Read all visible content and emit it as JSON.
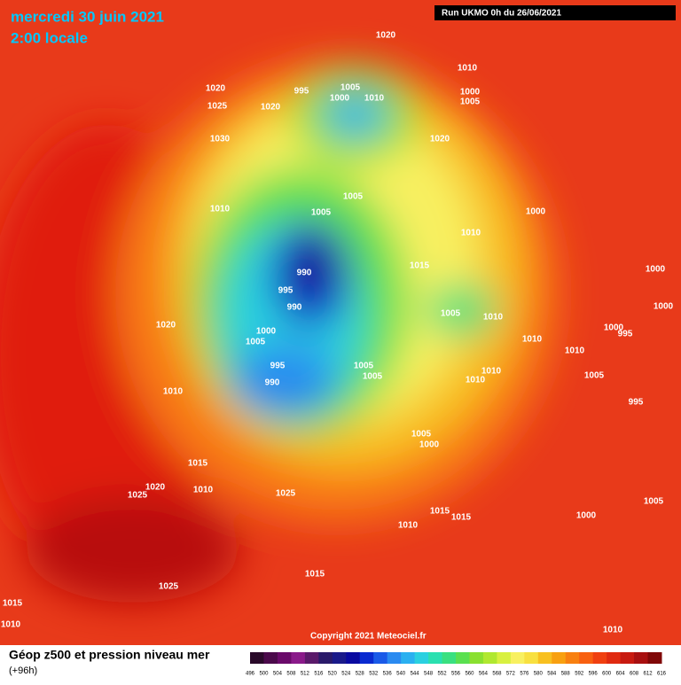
{
  "header": {
    "date": "mercredi 30 juin 2021",
    "time": "2:00 locale",
    "run": "Run UKMO 0h du 26/06/2021"
  },
  "footer": {
    "title": "Géop z500 et pression niveau mer",
    "lead": "(+96h)",
    "copyright": "Copyright 2021 Meteociel.fr"
  },
  "legend": {
    "ticks": [
      496,
      500,
      504,
      508,
      512,
      516,
      520,
      524,
      528,
      532,
      536,
      540,
      544,
      548,
      552,
      556,
      560,
      564,
      568,
      572,
      576,
      580,
      584,
      588,
      592,
      596,
      600,
      604,
      608,
      612,
      616
    ],
    "colors": [
      "#2a0a2a",
      "#4b0a4b",
      "#6a0a6a",
      "#8a1a8a",
      "#5a1a6a",
      "#2a1a6a",
      "#1a1a8a",
      "#0a0aa0",
      "#0a2ad0",
      "#1a5ae8",
      "#2a8af0",
      "#2ab0f0",
      "#2ad0e0",
      "#2ae0b0",
      "#3ae080",
      "#5ae050",
      "#8ae030",
      "#b0e830",
      "#d8f040",
      "#f8f060",
      "#f8e040",
      "#f8c020",
      "#f8a010",
      "#f88010",
      "#f86010",
      "#f04010",
      "#e02a10",
      "#c81a10",
      "#a81010",
      "#800808"
    ]
  },
  "isobar_labels": [
    "1020",
    "1020",
    "1025",
    "1030",
    "1020",
    "995",
    "1005",
    "1000",
    "1010",
    "1010",
    "1000",
    "1005",
    "1020",
    "1010",
    "1005",
    "1005",
    "1010",
    "1000",
    "990",
    "995",
    "990",
    "1015",
    "1005",
    "1010",
    "1020",
    "1000",
    "1005",
    "1010",
    "1000",
    "1000",
    "1000",
    "995",
    "1010",
    "995",
    "990",
    "1005",
    "1005",
    "1010",
    "1010",
    "1010",
    "1005",
    "995",
    "1005",
    "1000",
    "1015",
    "1020",
    "1010",
    "1025",
    "1025",
    "1015",
    "1015",
    "1000",
    "1005",
    "1010",
    "1015",
    "1025",
    "1015",
    "1010",
    "1010"
  ]
}
